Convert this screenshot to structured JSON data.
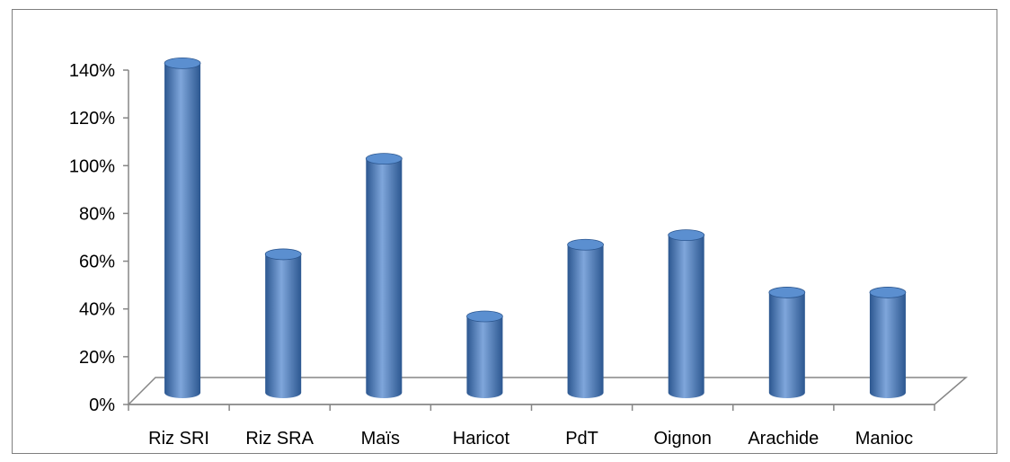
{
  "chart_data": {
    "type": "bar",
    "style": "3d-cylinder",
    "categories": [
      "Riz SRI",
      "Riz SRA",
      "Maïs",
      "Haricot",
      "PdT",
      "Oignon",
      "Arachide",
      "Manioc"
    ],
    "values": [
      1.41,
      0.61,
      1.01,
      0.35,
      0.65,
      0.69,
      0.45,
      0.45
    ],
    "ylim": [
      0,
      1.4
    ],
    "yticks": [
      {
        "value": 0,
        "label": "0%"
      },
      {
        "value": 0.2,
        "label": "20%"
      },
      {
        "value": 0.4,
        "label": "40%"
      },
      {
        "value": 0.6,
        "label": "60%"
      },
      {
        "value": 0.8,
        "label": "80%"
      },
      {
        "value": 1.0,
        "label": "100%"
      },
      {
        "value": 1.2,
        "label": "120%"
      },
      {
        "value": 1.4,
        "label": "140%"
      }
    ],
    "grid": false,
    "legend": "none",
    "title": "",
    "xlabel": "",
    "ylabel": "",
    "colors": {
      "bar": "#4f81bd",
      "bar_dark": "#2c5790",
      "bar_light": "#7fa6db",
      "bar_top": "#5b8fd0",
      "axis": "#868686"
    }
  }
}
